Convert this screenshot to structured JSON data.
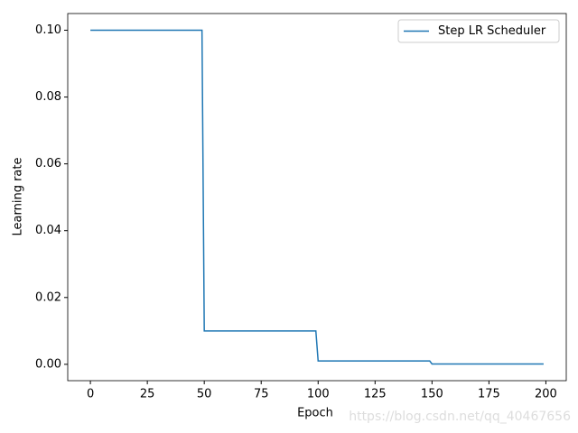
{
  "chart_data": {
    "type": "line",
    "xlabel": "Epoch",
    "ylabel": "Learning rate",
    "x": [
      0,
      49,
      50,
      99,
      100,
      149,
      150,
      199
    ],
    "series": [
      {
        "name": "Step LR Scheduler",
        "color": "#1f77b4",
        "values": [
          0.1,
          0.1,
          0.01,
          0.01,
          0.001,
          0.001,
          0.0001,
          0.0001
        ]
      }
    ],
    "xlim": [
      -9.95,
      208.95
    ],
    "xticks": [
      0,
      25,
      50,
      75,
      100,
      125,
      150,
      175,
      200
    ],
    "ylim": [
      -0.0048995,
      0.1049995
    ],
    "yticks": [
      {
        "value": 0,
        "label": "0.00"
      },
      {
        "value": 0.02,
        "label": "0.02"
      },
      {
        "value": 0.04,
        "label": "0.04"
      },
      {
        "value": 0.06,
        "label": "0.06"
      },
      {
        "value": 0.08,
        "label": "0.08"
      },
      {
        "value": 0.1,
        "label": "0.10"
      }
    ],
    "legend": "upper right",
    "watermark": "https://blog.csdn.net/qq_40467656"
  }
}
